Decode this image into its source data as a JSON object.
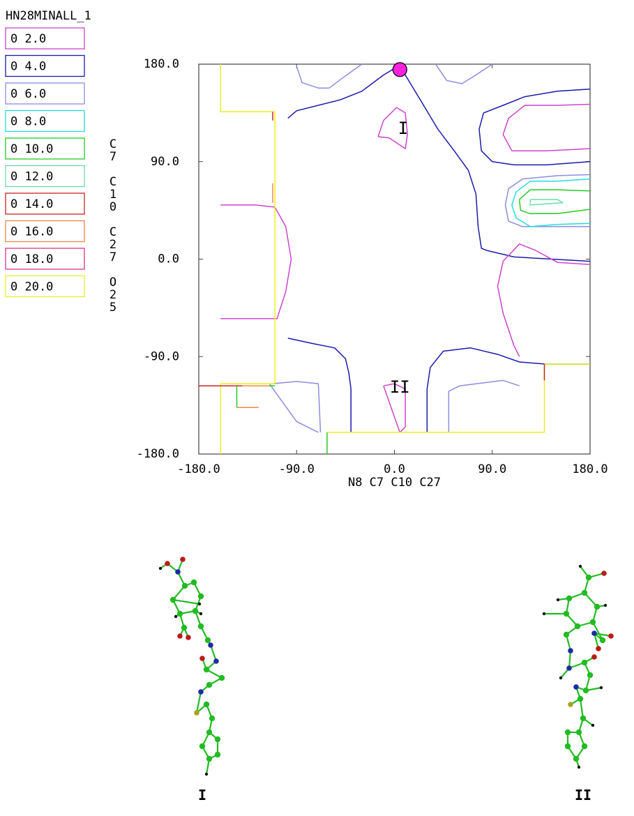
{
  "chart_data": {
    "type": "contour",
    "title": "HN28MINALL_1",
    "xlabel": "N8 C7 C10 C27",
    "ylabel": [
      "C",
      "7",
      "",
      "C",
      "1",
      "0",
      "",
      "C",
      "2",
      "7",
      "",
      "O",
      "2",
      "5"
    ],
    "xlim": [
      -180,
      180
    ],
    "ylim": [
      -180,
      180
    ],
    "xticks": [
      -180,
      -90,
      0,
      90,
      180
    ],
    "yticks": [
      -180,
      -90,
      0,
      90,
      180
    ],
    "xtick_labels": [
      "-180.0",
      "-90.0",
      "0.0",
      "90.0",
      "180.0"
    ],
    "ytick_labels": [
      "-180.0",
      "-90.0",
      "0.0",
      "90.0",
      "180.0"
    ],
    "legend": [
      {
        "label": "0 2.0",
        "color": "#cc44cc"
      },
      {
        "label": "0 4.0",
        "color": "#1a1aaa"
      },
      {
        "label": "0 6.0",
        "color": "#8c8cdc"
      },
      {
        "label": "0 8.0",
        "color": "#22dddd"
      },
      {
        "label": "0 10.0",
        "color": "#22cc22"
      },
      {
        "label": "0 12.0",
        "color": "#66ddaa"
      },
      {
        "label": "0 14.0",
        "color": "#cc2222"
      },
      {
        "label": "0 16.0",
        "color": "#ee8844"
      },
      {
        "label": "0 18.0",
        "color": "#dd3388"
      },
      {
        "label": "0 20.0",
        "color": "#eeee22"
      }
    ],
    "legend_position": "left",
    "marker": {
      "x": 5,
      "y": 175,
      "color": "#ff22dd"
    },
    "region_labels": [
      {
        "text": "I",
        "x": 8,
        "y": 122
      },
      {
        "text": "II",
        "x": 5,
        "y": -117
      }
    ],
    "contours": [
      {
        "level": 4.0,
        "color": "#1a1aaa",
        "points": [
          [
            -98,
            130
          ],
          [
            -90,
            137
          ],
          [
            -70,
            142
          ],
          [
            -50,
            147
          ],
          [
            -30,
            155
          ],
          [
            -10,
            170
          ],
          [
            0,
            176
          ],
          [
            10,
            170
          ],
          [
            25,
            145
          ],
          [
            40,
            120
          ],
          [
            55,
            100
          ],
          [
            68,
            82
          ],
          [
            75,
            60
          ],
          [
            77,
            30
          ],
          [
            80,
            10
          ],
          [
            85,
            8
          ],
          [
            110,
            2
          ],
          [
            180,
            -2
          ]
        ]
      },
      {
        "level": 4.0,
        "color": "#1a1aaa",
        "points": [
          [
            180,
            157
          ],
          [
            150,
            155
          ],
          [
            120,
            150
          ],
          [
            100,
            142
          ],
          [
            82,
            135
          ],
          [
            78,
            120
          ],
          [
            80,
            100
          ],
          [
            90,
            90
          ],
          [
            110,
            87
          ],
          [
            140,
            87
          ],
          [
            180,
            90
          ]
        ]
      },
      {
        "level": 4.0,
        "color": "#1a1aaa",
        "points": [
          [
            -98,
            -73
          ],
          [
            -75,
            -78
          ],
          [
            -55,
            -82
          ],
          [
            -45,
            -92
          ],
          [
            -42,
            -105
          ],
          [
            -40,
            -120
          ],
          [
            -40,
            -160
          ]
        ]
      },
      {
        "level": 4.0,
        "color": "#1a1aaa",
        "points": [
          [
            30,
            -160
          ],
          [
            30,
            -120
          ],
          [
            33,
            -100
          ],
          [
            45,
            -85
          ],
          [
            70,
            -82
          ],
          [
            95,
            -88
          ],
          [
            115,
            -95
          ],
          [
            140,
            -97
          ],
          [
            180,
            -97
          ]
        ]
      },
      {
        "level": 2.0,
        "color": "#cc44cc",
        "points": [
          [
            -15,
            113
          ],
          [
            -5,
            112
          ],
          [
            10,
            102
          ],
          [
            12,
            115
          ],
          [
            10,
            135
          ],
          [
            2,
            140
          ],
          [
            -10,
            128
          ],
          [
            -15,
            113
          ]
        ]
      },
      {
        "level": 2.0,
        "color": "#cc44cc",
        "points": [
          [
            -10,
            -117
          ],
          [
            0,
            -115
          ],
          [
            10,
            -120
          ],
          [
            10,
            -155
          ],
          [
            5,
            -160
          ],
          [
            -2,
            -140
          ],
          [
            -10,
            -117
          ]
        ]
      },
      {
        "level": 2.0,
        "color": "#cc44cc",
        "points": [
          [
            -160,
            50
          ],
          [
            -128,
            50
          ],
          [
            -110,
            48
          ],
          [
            -100,
            30
          ],
          [
            -95,
            0
          ],
          [
            -100,
            -30
          ],
          [
            -108,
            -55
          ],
          [
            -160,
            -55
          ]
        ]
      },
      {
        "level": 2.0,
        "color": "#cc44cc",
        "points": [
          [
            180,
            143
          ],
          [
            150,
            142
          ],
          [
            120,
            142
          ],
          [
            105,
            130
          ],
          [
            100,
            115
          ],
          [
            108,
            100
          ],
          [
            140,
            100
          ],
          [
            180,
            102
          ]
        ]
      },
      {
        "level": 2.0,
        "color": "#cc44cc",
        "points": [
          [
            180,
            -5
          ],
          [
            150,
            -3
          ],
          [
            130,
            8
          ],
          [
            115,
            14
          ],
          [
            100,
            -2
          ],
          [
            95,
            -25
          ],
          [
            100,
            -50
          ],
          [
            110,
            -80
          ],
          [
            115,
            -90
          ]
        ]
      },
      {
        "level": 6.0,
        "color": "#8c8cdc",
        "points": [
          [
            -90,
            178
          ],
          [
            -85,
            163
          ],
          [
            -70,
            158
          ],
          [
            -60,
            158
          ],
          [
            -48,
            167
          ],
          [
            -30,
            180
          ]
        ]
      },
      {
        "level": 6.0,
        "color": "#8c8cdc",
        "points": [
          [
            38,
            180
          ],
          [
            48,
            165
          ],
          [
            62,
            162
          ],
          [
            75,
            170
          ],
          [
            90,
            180
          ]
        ]
      },
      {
        "level": 6.0,
        "color": "#8c8cdc",
        "points": [
          [
            180,
            78
          ],
          [
            150,
            77
          ],
          [
            118,
            74
          ],
          [
            105,
            65
          ],
          [
            102,
            50
          ],
          [
            105,
            35
          ],
          [
            118,
            30
          ],
          [
            150,
            30
          ],
          [
            180,
            30
          ]
        ]
      },
      {
        "level": 6.0,
        "color": "#8c8cdc",
        "points": [
          [
            -115,
            -115
          ],
          [
            -108,
            -125
          ],
          [
            -90,
            -150
          ],
          [
            -70,
            -160
          ]
        ]
      },
      {
        "level": 6.0,
        "color": "#8c8cdc",
        "points": [
          [
            -112,
            -115
          ],
          [
            -90,
            -113
          ],
          [
            -70,
            -115
          ],
          [
            -68,
            -160
          ]
        ]
      },
      {
        "level": 6.0,
        "color": "#8c8cdc",
        "points": [
          [
            50,
            -160
          ],
          [
            50,
            -122
          ],
          [
            60,
            -117
          ],
          [
            100,
            -112
          ],
          [
            115,
            -117
          ]
        ]
      },
      {
        "level": 8.0,
        "color": "#22dddd",
        "points": [
          [
            180,
            74
          ],
          [
            150,
            72
          ],
          [
            125,
            72
          ],
          [
            112,
            62
          ],
          [
            108,
            50
          ],
          [
            112,
            38
          ],
          [
            125,
            30
          ],
          [
            150,
            32
          ],
          [
            180,
            33
          ]
        ]
      },
      {
        "level": 10.0,
        "color": "#22cc22",
        "points": [
          [
            180,
            63
          ],
          [
            150,
            64
          ],
          [
            125,
            64
          ],
          [
            115,
            55
          ],
          [
            116,
            45
          ],
          [
            125,
            42
          ],
          [
            150,
            42
          ],
          [
            180,
            46
          ]
        ]
      },
      {
        "level": 12.0,
        "color": "#66ddaa",
        "points": [
          [
            125,
            55
          ],
          [
            150,
            55
          ],
          [
            155,
            52
          ],
          [
            125,
            50
          ],
          [
            125,
            55
          ]
        ]
      },
      {
        "level": 20.0,
        "color": "#eeee22",
        "points": [
          [
            -160,
            180
          ],
          [
            -160,
            136
          ],
          [
            -110,
            136
          ],
          [
            -110,
            60
          ],
          [
            -110,
            -52
          ],
          [
            -110,
            -115
          ],
          [
            -160,
            -115
          ],
          [
            -160,
            -180
          ]
        ]
      },
      {
        "level": 20.0,
        "color": "#eeee22",
        "points": [
          [
            -180,
            -117
          ],
          [
            -110,
            -117
          ]
        ]
      },
      {
        "level": 20.0,
        "color": "#eeee22",
        "points": [
          [
            -52,
            -160
          ],
          [
            138,
            -160
          ],
          [
            138,
            -97
          ],
          [
            180,
            -97
          ]
        ]
      },
      {
        "level": 20.0,
        "color": "#eeee22",
        "points": [
          [
            -62,
            -160
          ],
          [
            -52,
            -160
          ]
        ]
      },
      {
        "level": 14.0,
        "color": "#cc2222",
        "points": [
          [
            -180,
            -117
          ],
          [
            -125,
            -117
          ]
        ]
      },
      {
        "level": 14.0,
        "color": "#cc2222",
        "points": [
          [
            138,
            -97
          ],
          [
            138,
            -112
          ]
        ]
      },
      {
        "level": 14.0,
        "color": "#cc2222",
        "points": [
          [
            -112,
            136
          ],
          [
            -112,
            128
          ]
        ]
      },
      {
        "level": 16.0,
        "color": "#ee8844",
        "points": [
          [
            -112,
            70
          ],
          [
            -112,
            52
          ]
        ]
      },
      {
        "level": 16.0,
        "color": "#ee8844",
        "points": [
          [
            -140,
            -117
          ],
          [
            -110,
            -117
          ]
        ]
      },
      {
        "level": 16.0,
        "color": "#ee8844",
        "points": [
          [
            -145,
            -137
          ],
          [
            -125,
            -137
          ]
        ]
      },
      {
        "level": 10.0,
        "color": "#22cc22",
        "points": [
          [
            -145,
            -117
          ],
          [
            -145,
            -137
          ]
        ]
      },
      {
        "level": 10.0,
        "color": "#22cc22",
        "points": [
          [
            -62,
            -160
          ],
          [
            -62,
            -180
          ]
        ]
      },
      {
        "level": 10.0,
        "color": "#22cc22",
        "points": [
          [
            -110,
            -117
          ],
          [
            -115,
            -117
          ]
        ]
      }
    ]
  },
  "molecules": [
    {
      "label": "I"
    },
    {
      "label": "II"
    }
  ]
}
